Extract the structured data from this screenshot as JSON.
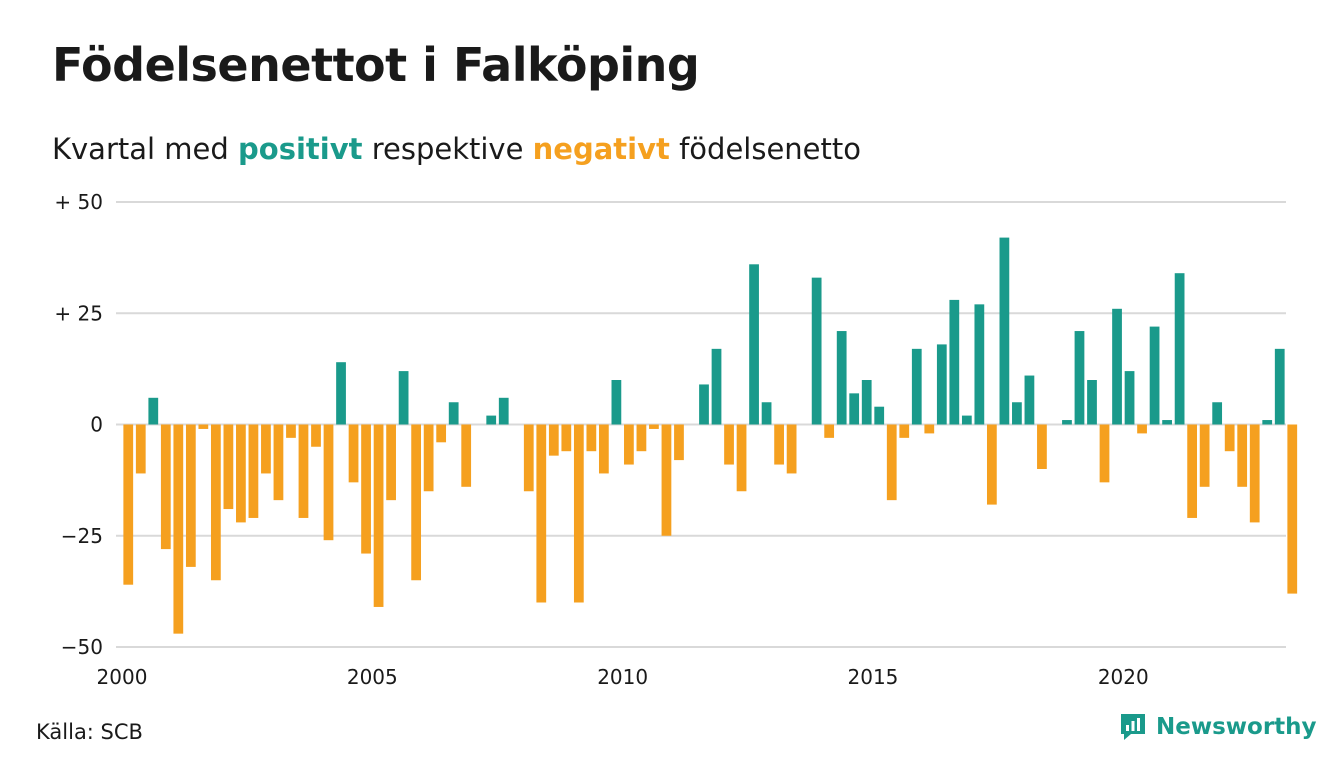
{
  "title": "Födelsenettot i Falköping",
  "subtitle": {
    "prefix": "Kvartal med ",
    "positive": "positivt",
    "middle": " respektive ",
    "negative": "negativt",
    "suffix": " födelsenetto"
  },
  "source": "Källa: SCB",
  "brand": {
    "name": "Newsworthy",
    "icon": "newsworthy-logo-icon"
  },
  "colors": {
    "positive": "#1a9a8b",
    "negative": "#f5a01f",
    "grid": "#d9d9d9",
    "text": "#1a1a1a"
  },
  "chart_data": {
    "type": "bar",
    "x_start": "2000 Q1",
    "x_ticks": [
      {
        "label": "2000",
        "x": 2000
      },
      {
        "label": "2005",
        "x": 2005
      },
      {
        "label": "2010",
        "x": 2010
      },
      {
        "label": "2015",
        "x": 2015
      },
      {
        "label": "2020",
        "x": 2020
      }
    ],
    "y_ticks": [
      {
        "label": "+ 50",
        "y": 50
      },
      {
        "label": "+ 25",
        "y": 25
      },
      {
        "label": "0",
        "y": 0
      },
      {
        "label": "−25",
        "y": -25
      },
      {
        "label": "−50",
        "y": -50
      }
    ],
    "ylim": [
      -50,
      50
    ],
    "xlim": [
      2000,
      2023.25
    ],
    "grid": true,
    "values": [
      -36,
      -11,
      6,
      -28,
      -47,
      -32,
      -1,
      -35,
      -19,
      -22,
      -21,
      -11,
      -17,
      -3,
      -21,
      -5,
      -26,
      14,
      -13,
      -29,
      -41,
      -17,
      12,
      -35,
      -15,
      -4,
      5,
      -14,
      0,
      2,
      6,
      0,
      -15,
      -40,
      -7,
      -6,
      -40,
      -6,
      -11,
      10,
      -9,
      -6,
      -1,
      -25,
      -8,
      0,
      9,
      17,
      -9,
      -15,
      36,
      5,
      -9,
      -11,
      0,
      33,
      -3,
      21,
      7,
      10,
      4,
      -17,
      -3,
      17,
      -2,
      18,
      28,
      2,
      27,
      -18,
      42,
      5,
      11,
      -10,
      0,
      1,
      21,
      10,
      -13,
      26,
      12,
      -2,
      22,
      1,
      34,
      -21,
      -14,
      5,
      -6,
      -14,
      -22,
      1,
      17,
      -38
    ]
  }
}
